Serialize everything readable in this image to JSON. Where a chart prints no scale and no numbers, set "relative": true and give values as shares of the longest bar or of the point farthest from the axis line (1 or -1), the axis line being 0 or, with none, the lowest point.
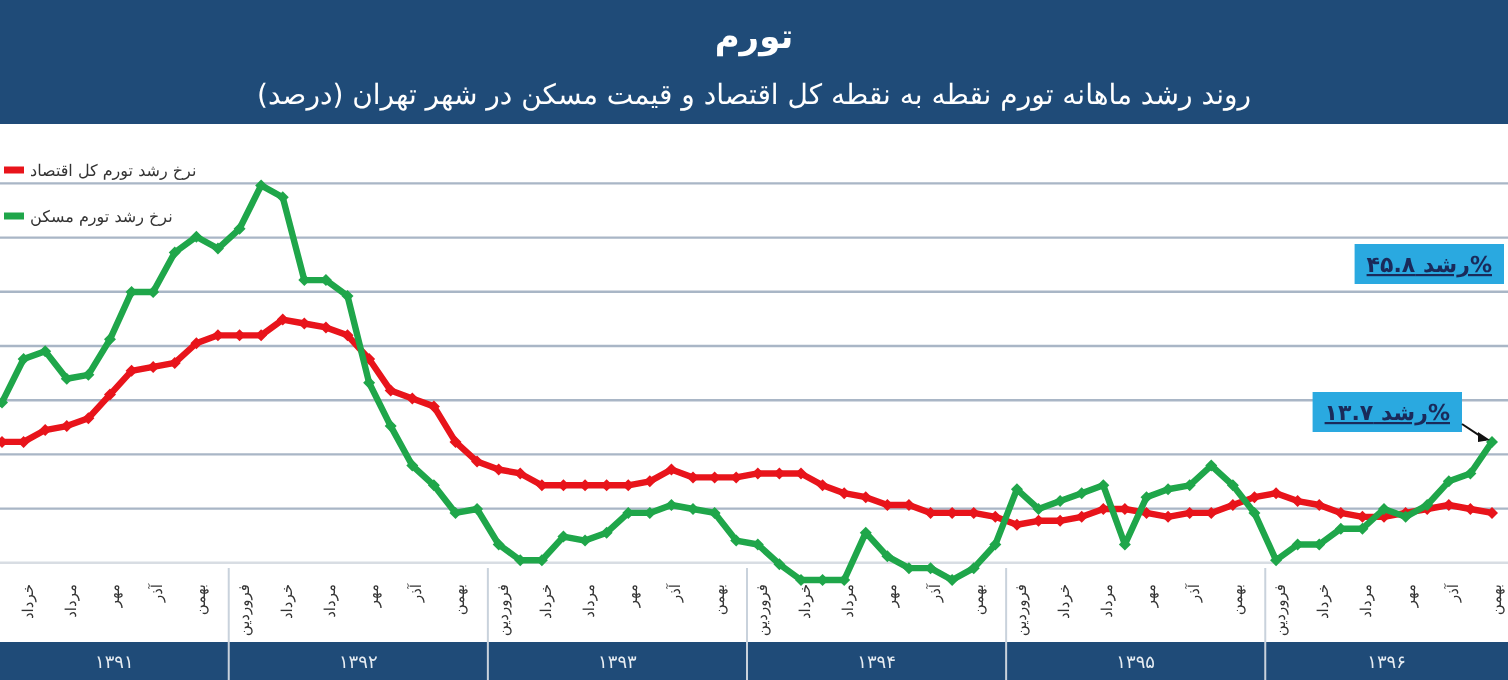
{
  "chart_data": {
    "type": "line",
    "title": "تورم",
    "subtitle": "روند رشد ماهانه تورم نقطه به نقطه کل اقتصاد و قیمت مسکن در شهر تهران (درصد)",
    "relative": true,
    "grid": "y",
    "legend": "top left",
    "marker": "diamond",
    "line_style": "solid",
    "categories": [
      null,
      "خرداد",
      null,
      "مرداد",
      null,
      "مهر",
      null,
      "آذر",
      null,
      "بهمن",
      null,
      "فروردین",
      null,
      "خرداد",
      null,
      "مرداد",
      null,
      "مهر",
      null,
      "آذر",
      null,
      "بهمن",
      null,
      "فروردین",
      null,
      "خرداد",
      null,
      "مرداد",
      null,
      "مهر",
      null,
      "آذر",
      null,
      "بهمن",
      null,
      "فروردین",
      null,
      "خرداد",
      null,
      "مرداد",
      null,
      "مهر",
      null,
      "آذر",
      null,
      "بهمن",
      null,
      "فروردین",
      null,
      "خرداد",
      null,
      "مرداد",
      null,
      "مهر",
      null,
      "آذر",
      null,
      "بهمن",
      null,
      "فروردین",
      null,
      "خرداد",
      null,
      "مرداد",
      null,
      "مهر",
      null,
      "آذر",
      null,
      "بهمن"
    ],
    "series": [
      {
        "name": "نرخ رشد تورم کل اقتصاد",
        "color": "#e8141b",
        "values": [
          0.35,
          0.35,
          0.38,
          0.39,
          0.41,
          0.47,
          0.53,
          0.54,
          0.55,
          0.6,
          0.62,
          0.62,
          0.62,
          0.66,
          0.65,
          0.64,
          0.62,
          0.56,
          0.48,
          0.46,
          0.44,
          0.35,
          0.3,
          0.28,
          0.27,
          0.24,
          0.24,
          0.24,
          0.24,
          0.24,
          0.25,
          0.28,
          0.26,
          0.26,
          0.26,
          0.27,
          0.27,
          0.27,
          0.24,
          0.22,
          0.21,
          0.19,
          0.19,
          0.17,
          0.17,
          0.17,
          0.16,
          0.14,
          0.15,
          0.15,
          0.16,
          0.18,
          0.18,
          0.17,
          0.16,
          0.17,
          0.17,
          0.19,
          0.21,
          0.22,
          0.2,
          0.19,
          0.17,
          0.16,
          0.16,
          0.17,
          0.18,
          0.19,
          0.18,
          0.17
        ]
      },
      {
        "name": "نرخ رشد تورم مسکن",
        "color": "#1fa64a",
        "values": [
          0.45,
          0.56,
          0.58,
          0.51,
          0.52,
          0.61,
          0.73,
          0.73,
          0.83,
          0.87,
          0.84,
          0.89,
          1.0,
          0.97,
          0.76,
          0.76,
          0.72,
          0.5,
          0.39,
          0.29,
          0.24,
          0.17,
          0.18,
          0.09,
          0.05,
          0.05,
          0.11,
          0.1,
          0.12,
          0.17,
          0.17,
          0.19,
          0.18,
          0.17,
          0.1,
          0.09,
          0.04,
          0,
          0,
          0,
          0.12,
          0.06,
          0.03,
          0.03,
          0,
          0.03,
          0.09,
          0.23,
          0.18,
          0.2,
          0.22,
          0.24,
          0.09,
          0.21,
          0.23,
          0.24,
          0.29,
          0.24,
          0.17,
          0.05,
          0.09,
          0.09,
          0.13,
          0.13,
          0.18,
          0.16,
          0.19,
          0.25,
          0.27,
          0.35
        ]
      }
    ],
    "annotations": [
      "رشد ۴۵.۸%",
      "رشد ۱۳.۷%",
      "۱۳۹۱",
      "۱۳۹۲",
      "۱۳۹۳",
      "۱۳۹۴",
      "۱۳۹۵",
      "۱۳۹۶"
    ]
  }
}
